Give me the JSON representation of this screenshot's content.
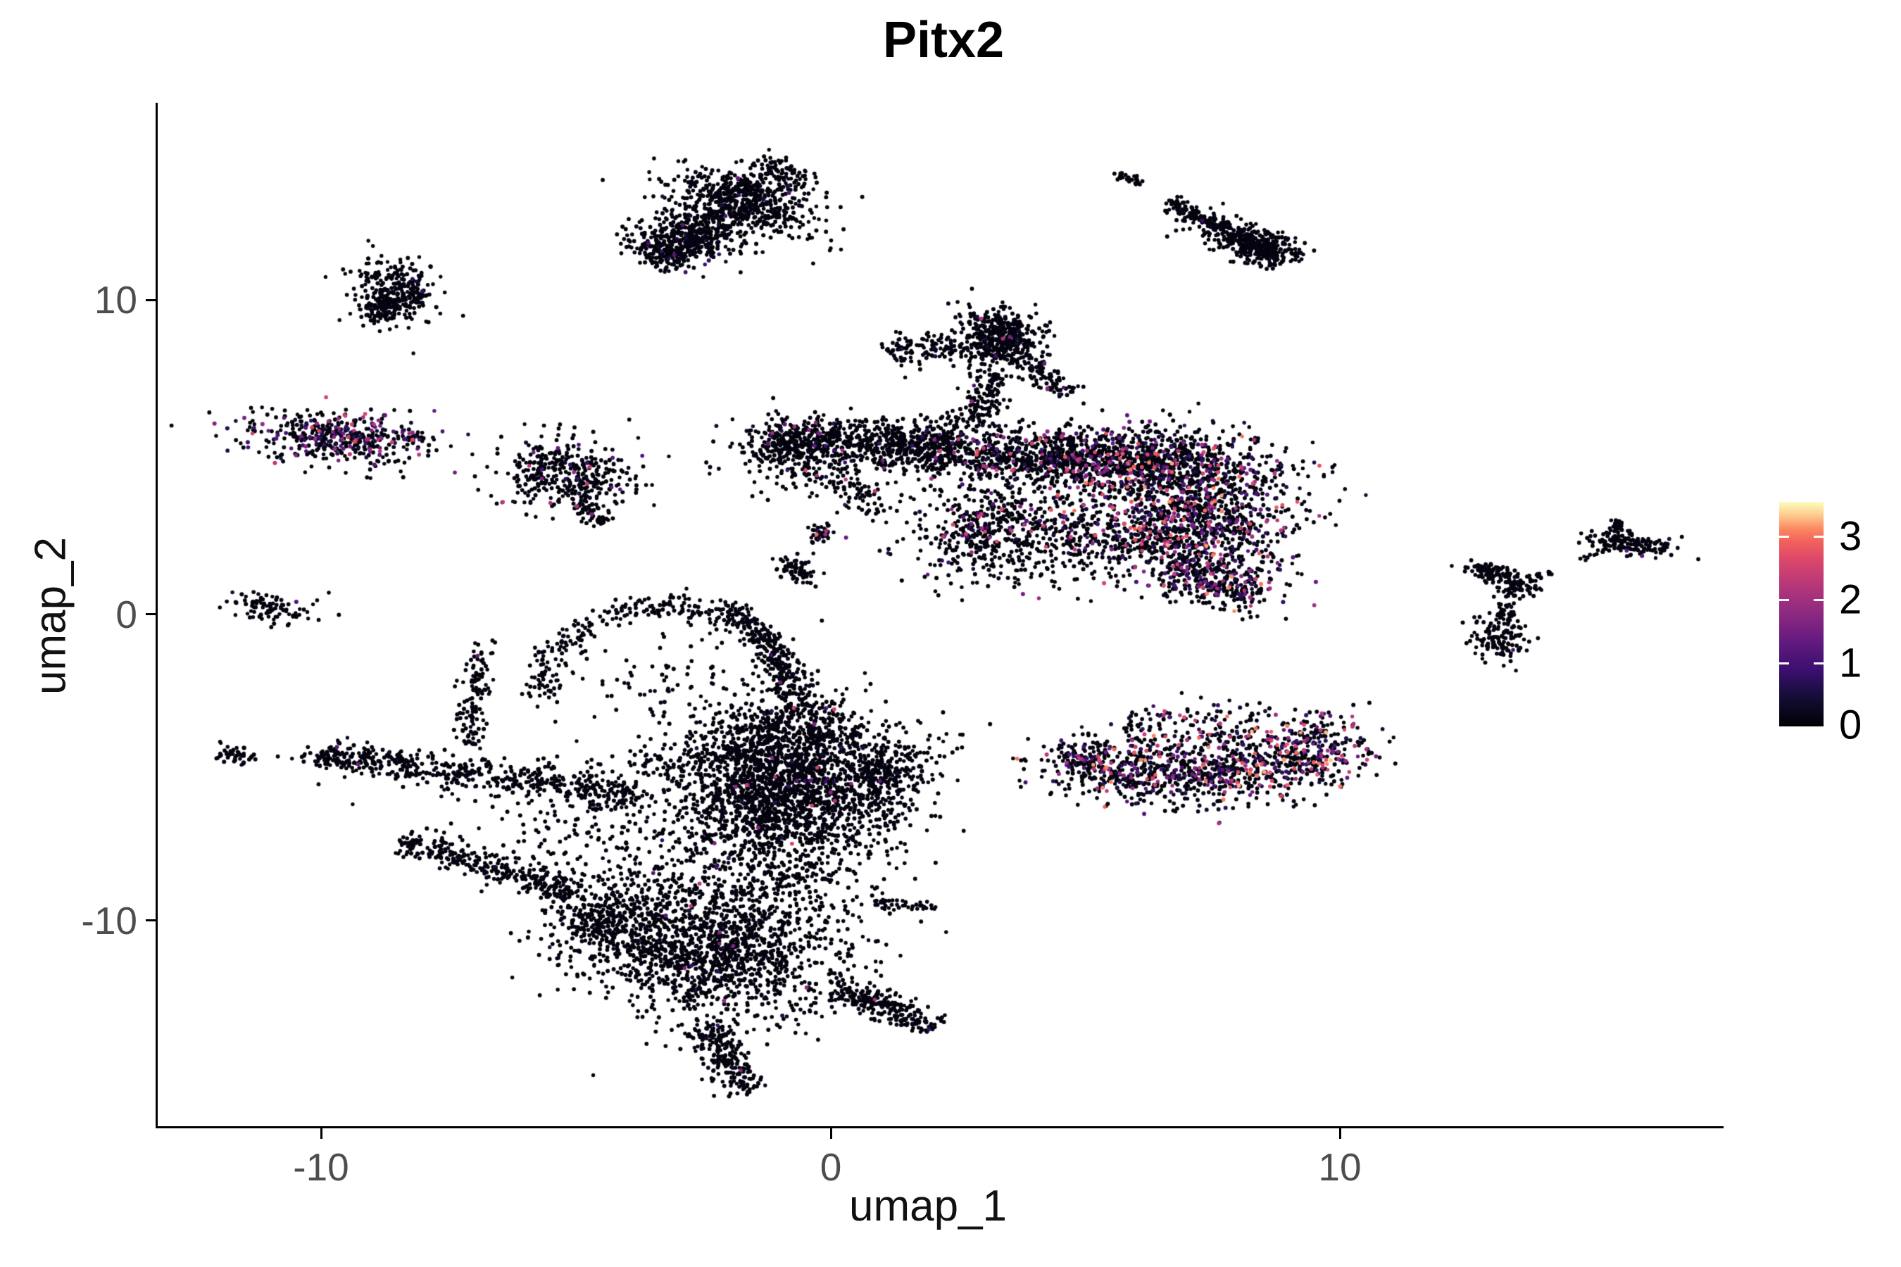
{
  "chart_data": {
    "type": "scatter",
    "title": "Pitx2",
    "xlabel": "umap_1",
    "ylabel": "umap_2",
    "x_axis": {
      "range": [
        -13.2,
        17.5
      ],
      "ticks": [
        {
          "label": "-10",
          "value": -10
        },
        {
          "label": "0",
          "value": 0
        },
        {
          "label": "10",
          "value": 10
        }
      ]
    },
    "y_axis": {
      "range": [
        -16.5,
        16.4
      ],
      "ticks": [
        {
          "label": "10",
          "value": 10
        },
        {
          "label": "0",
          "value": 0
        },
        {
          "label": "-10",
          "value": -10
        }
      ]
    },
    "legend": {
      "max": 3.55,
      "colormap": "magma",
      "ticks": [
        {
          "label": "3",
          "value": 3
        },
        {
          "label": "2",
          "value": 2
        },
        {
          "label": "1",
          "value": 1
        },
        {
          "label": "0",
          "value": 0
        }
      ],
      "colormap_stops": [
        [
          0.0,
          "#000004"
        ],
        [
          0.13,
          "#140e36"
        ],
        [
          0.25,
          "#3b0f70"
        ],
        [
          0.38,
          "#641a80"
        ],
        [
          0.5,
          "#8c2981"
        ],
        [
          0.63,
          "#b73779"
        ],
        [
          0.75,
          "#de4968"
        ],
        [
          0.82,
          "#f1605d"
        ],
        [
          0.88,
          "#fb8861"
        ],
        [
          0.94,
          "#feca8d"
        ],
        [
          1.0,
          "#fcfdbf"
        ]
      ]
    },
    "point": {
      "radius_px": 2.8
    },
    "points_note": "~17700 cells; clusters below are generative summaries read from the plot: centers/spreads in UMAP units, n = point count, expr = fraction of expressing (colored) cells, emax = max expression value in that cluster",
    "clusters": [
      {
        "name": "top-center-blob",
        "type": "gauss",
        "cx": -1.66,
        "cy": 13.22,
        "sx": 0.85,
        "sy": 0.42,
        "rot": -33,
        "n": 380,
        "expr": 0.015,
        "emax": 1.6
      },
      {
        "name": "top-center-strand",
        "type": "strand",
        "x1": -3.59,
        "y1": 11.52,
        "x2": -0.69,
        "y2": 14.47,
        "w": 0.4,
        "n": 520,
        "expr": 0.02,
        "emax": 1.6
      },
      {
        "name": "top-center-tail",
        "type": "strand",
        "x1": -3.52,
        "y1": 11.29,
        "x2": -2.35,
        "y2": 12.31,
        "w": 0.28,
        "n": 170,
        "expr": 0.015,
        "emax": 1.4
      },
      {
        "name": "top-center-fill",
        "type": "gauss",
        "cx": -2.6,
        "cy": 12.2,
        "sx": 0.55,
        "sy": 0.45,
        "rot": -30,
        "n": 140,
        "expr": 0.02,
        "emax": 1.4
      },
      {
        "name": "top-right-dot",
        "type": "gauss",
        "cx": 5.91,
        "cy": 14.01,
        "sx": 0.17,
        "sy": 0.09,
        "rot": -25,
        "n": 26,
        "expr": 0,
        "emax": 1
      },
      {
        "name": "top-right-strand",
        "type": "strand",
        "x1": 6.63,
        "y1": 13.29,
        "x2": 8.73,
        "y2": 11.59,
        "w": 0.11,
        "n": 200,
        "expr": 0.003,
        "emax": 1
      },
      {
        "name": "top-right-blob",
        "type": "gauss",
        "cx": 8.47,
        "cy": 11.81,
        "sx": 0.4,
        "sy": 0.28,
        "rot": -25,
        "n": 250,
        "expr": 0.004,
        "emax": 1
      },
      {
        "name": "top-right-scatter",
        "type": "gauss",
        "cx": 7.73,
        "cy": 12.26,
        "sx": 0.55,
        "sy": 0.33,
        "rot": -25,
        "n": 90,
        "expr": 0.01,
        "emax": 1.2
      },
      {
        "name": "left-small-round",
        "type": "gauss",
        "cx": -8.6,
        "cy": 10.45,
        "sx": 0.4,
        "sy": 0.52,
        "rot": 15,
        "n": 280,
        "expr": 0.008,
        "emax": 1.3
      },
      {
        "name": "left-small-round-lobe",
        "type": "gauss",
        "cx": -8.77,
        "cy": 9.85,
        "sx": 0.28,
        "sy": 0.24,
        "rot": 0,
        "n": 80,
        "expr": 0.01,
        "emax": 1.3
      },
      {
        "name": "left-expressing-oval",
        "type": "gauss",
        "cx": -9.67,
        "cy": 5.69,
        "sx": 0.9,
        "sy": 0.42,
        "rot": -7,
        "n": 430,
        "expr": 0.34,
        "emax": 2.7
      },
      {
        "name": "left-expressing-tail",
        "type": "strand",
        "x1": -8.6,
        "y1": 5.6,
        "x2": -7.95,
        "y2": 5.75,
        "w": 0.09,
        "n": 22,
        "expr": 0.3,
        "emax": 2.7
      },
      {
        "name": "mid-scatter-cluster",
        "type": "gauss",
        "cx": -5.41,
        "cy": 4.6,
        "sx": 0.6,
        "sy": 0.6,
        "rot": 0,
        "n": 290,
        "expr": 0.07,
        "emax": 2.9
      },
      {
        "name": "mid-scatter-right",
        "type": "gauss",
        "cx": -4.45,
        "cy": 4.2,
        "sx": 0.48,
        "sy": 0.42,
        "rot": 0,
        "n": 75,
        "expr": 0.09,
        "emax": 2.4
      },
      {
        "name": "mid-scatter-tail",
        "type": "strand",
        "x1": -4.97,
        "y1": 3.58,
        "x2": -4.39,
        "y2": 2.9,
        "w": 0.14,
        "n": 55,
        "expr": 0.03,
        "emax": 2
      },
      {
        "name": "tiny-left-cluster",
        "type": "gauss",
        "cx": -10.98,
        "cy": 0.25,
        "sx": 0.52,
        "sy": 0.28,
        "rot": -10,
        "n": 90,
        "expr": 0.01,
        "emax": 1.2
      },
      {
        "name": "central-head",
        "type": "gauss",
        "cx": 3.27,
        "cy": 8.85,
        "sx": 0.42,
        "sy": 0.52,
        "rot": 8,
        "n": 500,
        "expr": 0.02,
        "emax": 2.3
      },
      {
        "name": "central-head-left-arm",
        "type": "strand",
        "x1": 1.17,
        "y1": 8.34,
        "x2": 2.49,
        "y2": 8.8,
        "w": 0.24,
        "n": 110,
        "expr": 0.02,
        "emax": 2
      },
      {
        "name": "central-neck",
        "type": "strand",
        "x1": 3.15,
        "y1": 7.78,
        "x2": 2.83,
        "y2": 6.1,
        "w": 0.22,
        "n": 130,
        "expr": 0.03,
        "emax": 2.4
      },
      {
        "name": "central-head-right-arm",
        "type": "strand",
        "x1": 3.87,
        "y1": 8.0,
        "x2": 4.7,
        "y2": 7.1,
        "w": 0.17,
        "n": 80,
        "expr": 0.03,
        "emax": 2
      },
      {
        "name": "central-wing-band",
        "type": "strand",
        "x1": -1.24,
        "y1": 5.62,
        "x2": 2.56,
        "y2": 5.42,
        "w": 0.38,
        "n": 760,
        "expr": 0.03,
        "emax": 2.4
      },
      {
        "name": "central-wing-left-fray",
        "type": "gauss",
        "cx": -0.97,
        "cy": 5.25,
        "sx": 0.5,
        "sy": 0.55,
        "rot": 0,
        "n": 150,
        "expr": 0.03,
        "emax": 2
      },
      {
        "name": "central-under-trail",
        "type": "strand",
        "x1": -0.28,
        "y1": 4.72,
        "x2": 1.1,
        "y2": 3.24,
        "w": 0.33,
        "n": 100,
        "expr": 0.04,
        "emax": 2.6
      },
      {
        "name": "central-clump-a",
        "type": "gauss",
        "cx": -0.17,
        "cy": 2.61,
        "sx": 0.17,
        "sy": 0.14,
        "rot": 0,
        "n": 42,
        "expr": 0.12,
        "emax": 3.1
      },
      {
        "name": "central-clump-b",
        "type": "gauss",
        "cx": -0.72,
        "cy": 1.5,
        "sx": 0.26,
        "sy": 0.2,
        "rot": -20,
        "n": 70,
        "expr": 0.02,
        "emax": 2
      },
      {
        "name": "body-upper-left",
        "type": "gauss",
        "cx": 4.14,
        "cy": 5.1,
        "sx": 1.5,
        "sy": 0.48,
        "rot": -4,
        "n": 820,
        "expr": 0.12,
        "emax": 2.9
      },
      {
        "name": "body-upper-right",
        "type": "gauss",
        "cx": 6.46,
        "cy": 4.8,
        "sx": 1.3,
        "sy": 0.62,
        "rot": -6,
        "n": 880,
        "expr": 0.25,
        "emax": 3.2
      },
      {
        "name": "body-right",
        "type": "gauss",
        "cx": 7.4,
        "cy": 2.9,
        "sx": 0.82,
        "sy": 1.02,
        "rot": 15,
        "n": 760,
        "expr": 0.3,
        "emax": 3.3
      },
      {
        "name": "body-lower-mid",
        "type": "gauss",
        "cx": 5.32,
        "cy": 2.48,
        "sx": 1.22,
        "sy": 0.72,
        "rot": 4,
        "n": 520,
        "expr": 0.18,
        "emax": 3.0
      },
      {
        "name": "body-bottom-tip",
        "type": "strand",
        "x1": 6.56,
        "y1": 1.38,
        "x2": 8.45,
        "y2": 0.64,
        "w": 0.32,
        "n": 250,
        "expr": 0.25,
        "emax": 3.2
      },
      {
        "name": "body-lower-left",
        "type": "gauss",
        "cx": 3.04,
        "cy": 2.7,
        "sx": 0.72,
        "sy": 0.82,
        "rot": 0,
        "n": 420,
        "expr": 0.1,
        "emax": 2.8
      },
      {
        "name": "crescent-left",
        "type": "gauss",
        "cx": 5.55,
        "cy": -4.92,
        "sx": 0.82,
        "sy": 0.48,
        "rot": -12,
        "n": 330,
        "expr": 0.28,
        "emax": 3.2
      },
      {
        "name": "crescent-mid",
        "type": "gauss",
        "cx": 7.35,
        "cy": -5.1,
        "sx": 0.92,
        "sy": 0.52,
        "rot": 0,
        "n": 420,
        "expr": 0.3,
        "emax": 3.3
      },
      {
        "name": "crescent-right",
        "type": "gauss",
        "cx": 9.23,
        "cy": -4.47,
        "sx": 0.72,
        "sy": 0.62,
        "rot": 18,
        "n": 380,
        "expr": 0.35,
        "emax": 3.4
      },
      {
        "name": "crescent-top-scatter",
        "type": "strand",
        "x1": 5.8,
        "y1": -3.67,
        "x2": 8.43,
        "y2": -3.58,
        "w": 0.42,
        "n": 140,
        "expr": 0.3,
        "emax": 3.2
      },
      {
        "name": "crescent-left-tip",
        "type": "gauss",
        "cx": 4.86,
        "cy": -4.74,
        "sx": 0.22,
        "sy": 0.18,
        "rot": 0,
        "n": 55,
        "expr": 0.2,
        "emax": 2.6
      },
      {
        "name": "y-cluster-left-arm",
        "type": "gauss",
        "cx": 12.98,
        "cy": 1.36,
        "sx": 0.32,
        "sy": 0.19,
        "rot": -15,
        "n": 90,
        "expr": 0.005,
        "emax": 1
      },
      {
        "name": "y-cluster-node",
        "type": "gauss",
        "cx": 13.48,
        "cy": 0.91,
        "sx": 0.17,
        "sy": 0.14,
        "rot": 0,
        "n": 55,
        "expr": 0,
        "emax": 1
      },
      {
        "name": "y-cluster-stem",
        "type": "strand",
        "x1": 13.33,
        "y1": 0.63,
        "x2": 13.23,
        "y2": -0.16,
        "w": 0.11,
        "n": 35,
        "expr": 0,
        "emax": 1
      },
      {
        "name": "y-cluster-bottom",
        "type": "gauss",
        "cx": 13.12,
        "cy": -0.73,
        "sx": 0.26,
        "sy": 0.36,
        "rot": 0,
        "n": 125,
        "expr": 0.03,
        "emax": 1.7
      },
      {
        "name": "y-cluster-dotted-arm",
        "type": "strand",
        "x1": 13.7,
        "y1": 1.16,
        "x2": 14.25,
        "y2": 1.38,
        "w": 0.05,
        "n": 12,
        "expr": 0,
        "emax": 1
      },
      {
        "name": "ne-dotted-trail",
        "type": "strand",
        "x1": 14.68,
        "y1": 1.72,
        "x2": 15.25,
        "y2": 2.13,
        "w": 0.05,
        "n": 13,
        "expr": 0,
        "emax": 1
      },
      {
        "name": "ne-blob",
        "type": "gauss",
        "cx": 15.64,
        "cy": 2.29,
        "sx": 0.42,
        "sy": 0.15,
        "rot": -12,
        "n": 150,
        "expr": 0.008,
        "emax": 1.3
      },
      {
        "name": "ne-tiny-top",
        "type": "gauss",
        "cx": 15.41,
        "cy": 2.88,
        "sx": 0.12,
        "sy": 0.11,
        "rot": 0,
        "n": 22,
        "expr": 0.05,
        "emax": 1.2
      },
      {
        "name": "bl-ring",
        "type": "arc",
        "cx": -3.2,
        "cy": -2.31,
        "rx": 2.42,
        "ry": 2.56,
        "a0": -100,
        "a1": 190,
        "w": 0.13,
        "n": 520,
        "expr": 0.01,
        "emax": 2.2
      },
      {
        "name": "bl-ring-inner",
        "type": "gauss",
        "cx": -3.2,
        "cy": -2.2,
        "sx": 1.1,
        "sy": 0.9,
        "rot": 0,
        "n": 80,
        "expr": 0.01,
        "emax": 2
      },
      {
        "name": "bl-right-strand",
        "type": "strand",
        "x1": -1.93,
        "y1": 0.34,
        "x2": -0.11,
        "y2": -4.13,
        "qx": -0.83,
        "qy": -1.75,
        "w": 0.17,
        "n": 230,
        "expr": 0.01,
        "emax": 2
      },
      {
        "name": "bl-left-strand",
        "type": "strand",
        "x1": -6.8,
        "y1": -0.79,
        "x2": -7.15,
        "y2": -4.2,
        "w": 0.14,
        "n": 120,
        "expr": 0.01,
        "emax": 2
      },
      {
        "name": "bl-upper-arm",
        "type": "strand",
        "x1": -9.97,
        "y1": -4.51,
        "x2": -3.8,
        "y2": -5.87,
        "w": 0.26,
        "n": 520,
        "expr": 0.008,
        "emax": 2.2
      },
      {
        "name": "bl-upper-arm-tip",
        "type": "gauss",
        "cx": -9.8,
        "cy": -4.6,
        "sx": 0.33,
        "sy": 0.18,
        "rot": 0,
        "n": 55,
        "expr": 0,
        "emax": 1
      },
      {
        "name": "bl-far-left-dots",
        "type": "gauss",
        "cx": -11.71,
        "cy": -4.51,
        "sx": 0.26,
        "sy": 0.17,
        "rot": 0,
        "n": 45,
        "expr": 0,
        "emax": 1
      },
      {
        "name": "bl-lower-arm",
        "type": "strand",
        "x1": -8.49,
        "y1": -7.23,
        "x2": -5.11,
        "y2": -8.96,
        "w": 0.2,
        "n": 300,
        "expr": 0.008,
        "emax": 2
      },
      {
        "name": "bl-main-mass",
        "type": "gauss",
        "cx": -0.86,
        "cy": -5.56,
        "sx": 1.05,
        "sy": 1.45,
        "rot": 0,
        "n": 2300,
        "expr": 0.015,
        "emax": 2.6
      },
      {
        "name": "bl-mass-right",
        "type": "gauss",
        "cx": 0.99,
        "cy": -4.97,
        "sx": 0.52,
        "sy": 0.7,
        "rot": 0,
        "n": 280,
        "expr": 0.02,
        "emax": 2.6
      },
      {
        "name": "bl-bridge-scatter",
        "type": "gauss",
        "cx": -4.42,
        "cy": -6.51,
        "sx": 1.45,
        "sy": 1.15,
        "rot": 0,
        "n": 260,
        "expr": 0.01,
        "emax": 2
      },
      {
        "name": "bl-bottom-mass",
        "type": "gauss",
        "cx": -2.32,
        "cy": -10.86,
        "sx": 1.3,
        "sy": 1.12,
        "rot": -8,
        "n": 1500,
        "expr": 0.012,
        "emax": 2.4
      },
      {
        "name": "bl-bottom-left-edge",
        "type": "gauss",
        "cx": -4.45,
        "cy": -9.86,
        "sx": 0.58,
        "sy": 0.52,
        "rot": 0,
        "n": 280,
        "expr": 0.01,
        "emax": 2
      },
      {
        "name": "bl-bottom-tail",
        "type": "strand",
        "x1": -2.42,
        "y1": -13.2,
        "x2": -1.63,
        "y2": -15.4,
        "w": 0.24,
        "n": 220,
        "expr": 0.01,
        "emax": 2
      },
      {
        "name": "bl-right-spur",
        "type": "strand",
        "x1": 0.07,
        "y1": -12.0,
        "x2": 2.1,
        "y2": -13.27,
        "w": 0.19,
        "n": 240,
        "expr": 0.012,
        "emax": 2.4
      },
      {
        "name": "bl-right-spur-2",
        "type": "strand",
        "x1": 0.83,
        "y1": -9.27,
        "x2": 2.07,
        "y2": -9.5,
        "w": 0.1,
        "n": 40,
        "expr": 0,
        "emax": 1
      },
      {
        "name": "bl-mid-scatter",
        "type": "gauss",
        "cx": -2.07,
        "cy": -8.78,
        "sx": 1.6,
        "sy": 0.65,
        "rot": 0,
        "n": 220,
        "expr": 0.01,
        "emax": 2
      }
    ]
  }
}
